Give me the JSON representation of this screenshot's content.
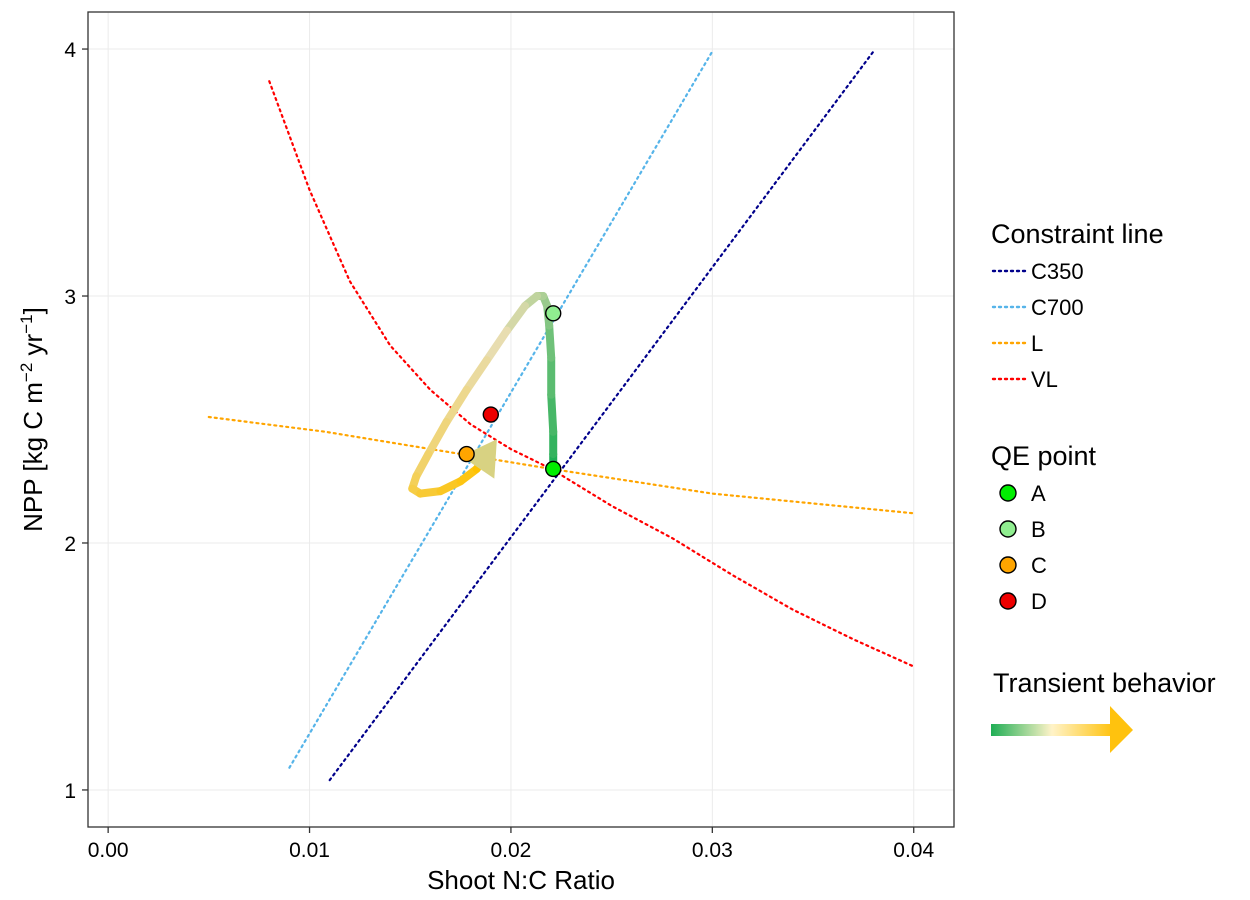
{
  "chart_data": {
    "type": "line",
    "xlabel": "Shoot N:C Ratio",
    "ylabel": {
      "main": "NPP [kg C m",
      "sup1": "−2",
      "mid": " yr",
      "sup2": "−1",
      "end": "]"
    },
    "xlim": [
      -0.001,
      0.042
    ],
    "ylim": [
      0.85,
      4.15
    ],
    "x_ticks": [
      {
        "value": 0.0,
        "label": "0.00"
      },
      {
        "value": 0.01,
        "label": "0.01"
      },
      {
        "value": 0.02,
        "label": "0.02"
      },
      {
        "value": 0.03,
        "label": "0.03"
      },
      {
        "value": 0.04,
        "label": "0.04"
      }
    ],
    "y_ticks": [
      {
        "value": 1,
        "label": "1"
      },
      {
        "value": 2,
        "label": "2"
      },
      {
        "value": 3,
        "label": "3"
      },
      {
        "value": 4,
        "label": "4"
      }
    ],
    "grid": true,
    "constraint_lines": [
      {
        "name": "C350",
        "color": "#00008b",
        "points": [
          [
            0.011,
            1.04
          ],
          [
            0.038,
            3.99
          ]
        ]
      },
      {
        "name": "C700",
        "color": "#56b4e9",
        "points": [
          [
            0.009,
            1.09
          ],
          [
            0.03,
            3.99
          ]
        ]
      },
      {
        "name": "L",
        "color": "#ffa500",
        "points": [
          [
            0.005,
            2.51
          ],
          [
            0.0108,
            2.45
          ],
          [
            0.022,
            2.3
          ],
          [
            0.03,
            2.2
          ],
          [
            0.04,
            2.12
          ]
        ]
      },
      {
        "name": "VL",
        "color": "#ff0000",
        "points": [
          [
            0.008,
            3.87
          ],
          [
            0.01,
            3.43
          ],
          [
            0.012,
            3.06
          ],
          [
            0.014,
            2.8
          ],
          [
            0.016,
            2.62
          ],
          [
            0.018,
            2.48
          ],
          [
            0.02,
            2.38
          ],
          [
            0.022,
            2.3
          ],
          [
            0.025,
            2.15
          ],
          [
            0.028,
            2.02
          ],
          [
            0.031,
            1.87
          ],
          [
            0.034,
            1.73
          ],
          [
            0.037,
            1.61
          ],
          [
            0.04,
            1.5
          ]
        ]
      }
    ],
    "qe_points": [
      {
        "name": "A",
        "color": "#00ee00",
        "x": 0.0221,
        "y": 2.3
      },
      {
        "name": "B",
        "color": "#90ee90",
        "x": 0.0221,
        "y": 2.93
      },
      {
        "name": "C",
        "color": "#ffa500",
        "x": 0.0178,
        "y": 2.36
      },
      {
        "name": "D",
        "color": "#ee0000",
        "x": 0.019,
        "y": 2.52
      }
    ],
    "transient_path": [
      [
        0.0221,
        2.3
      ],
      [
        0.0221,
        2.36
      ],
      [
        0.0221,
        2.45
      ],
      [
        0.022,
        2.6
      ],
      [
        0.022,
        2.75
      ],
      [
        0.0219,
        2.88
      ],
      [
        0.0218,
        2.96
      ],
      [
        0.0216,
        3.0
      ],
      [
        0.0213,
        3.0
      ],
      [
        0.0207,
        2.96
      ],
      [
        0.0198,
        2.86
      ],
      [
        0.0188,
        2.74
      ],
      [
        0.0178,
        2.62
      ],
      [
        0.0168,
        2.49
      ],
      [
        0.0159,
        2.36
      ],
      [
        0.0153,
        2.27
      ],
      [
        0.0151,
        2.22
      ],
      [
        0.0155,
        2.2
      ],
      [
        0.0165,
        2.21
      ],
      [
        0.0175,
        2.25
      ],
      [
        0.0183,
        2.3
      ],
      [
        0.0188,
        2.36
      ]
    ],
    "transient_colors": {
      "start": "#1fae55",
      "mid": "#e8ddb0",
      "end": "#ffc200"
    },
    "arrow_color": "#d8d282",
    "legend": {
      "position": "right",
      "constraint_title": "Constraint line",
      "qe_title": "QE point",
      "transient_title": "Transient behavior"
    }
  }
}
